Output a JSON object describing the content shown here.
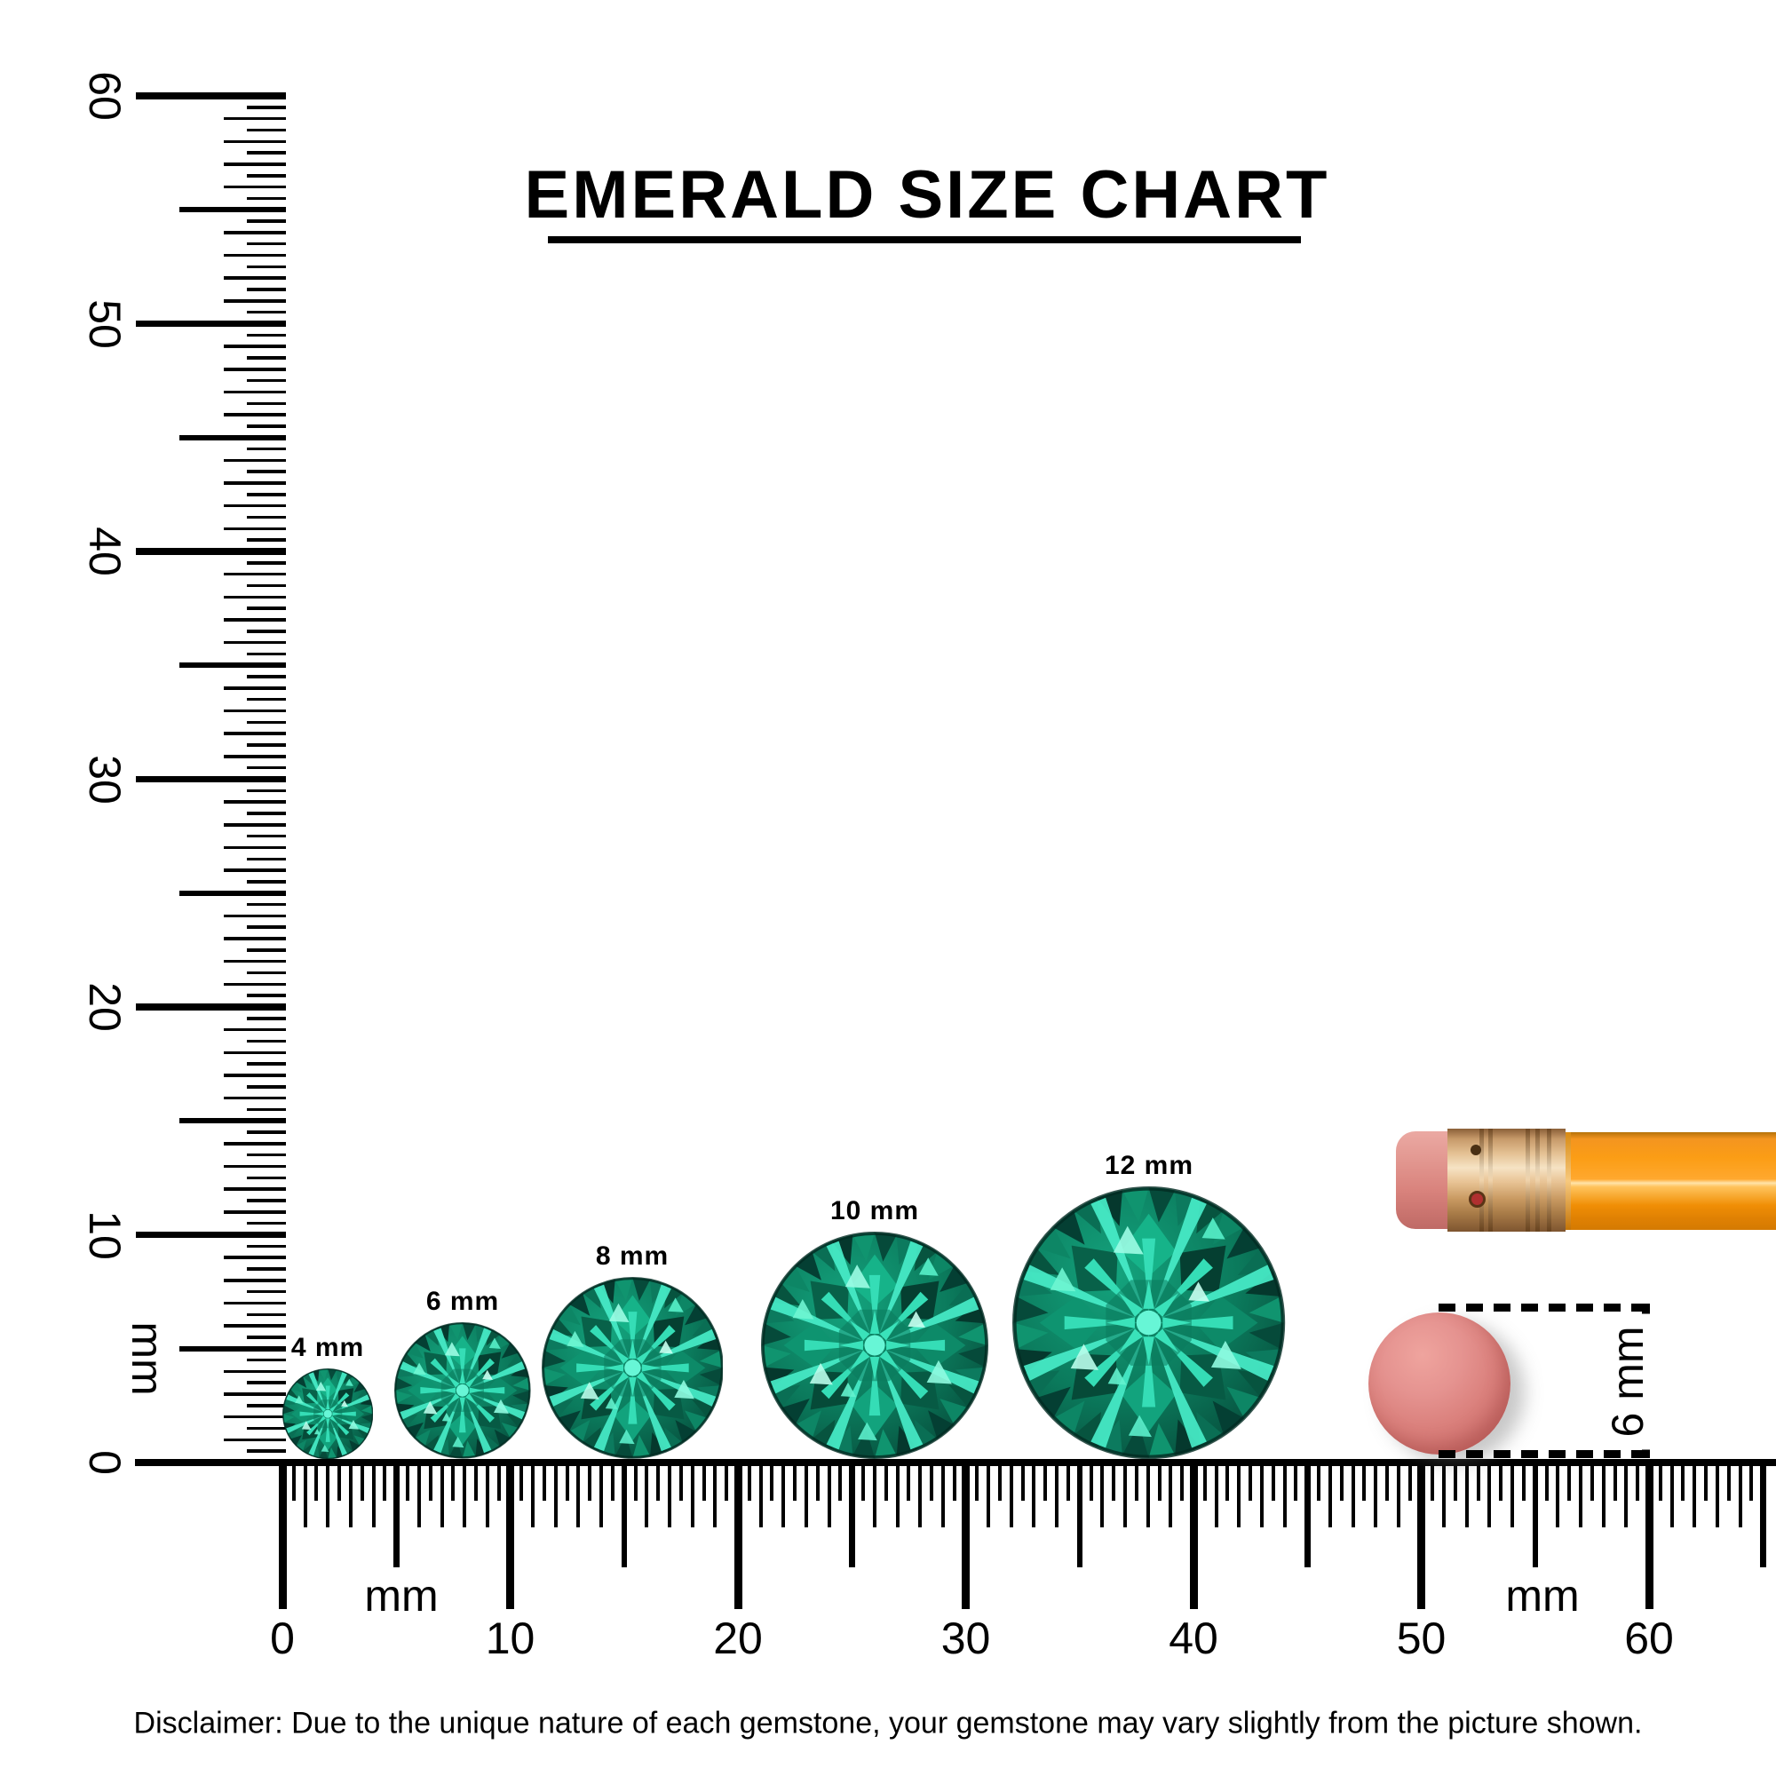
{
  "title": "EMERALD SIZE CHART",
  "rulers": {
    "vertical": {
      "unit": "mm",
      "labels": [
        "0",
        "10",
        "20",
        "30",
        "40",
        "50",
        "60"
      ]
    },
    "horizontal": {
      "unit_left": "mm",
      "unit_right": "mm",
      "labels": [
        "0",
        "10",
        "20",
        "30",
        "40",
        "50",
        "60"
      ]
    }
  },
  "gems": [
    {
      "label": "4 mm",
      "size_mm": 4
    },
    {
      "label": "6 mm",
      "size_mm": 6
    },
    {
      "label": "8 mm",
      "size_mm": 8
    },
    {
      "label": "10 mm",
      "size_mm": 10
    },
    {
      "label": "12 mm",
      "size_mm": 12
    }
  ],
  "eraser_measurement": {
    "label": "6 mm",
    "diameter_mm": 6
  },
  "disclaimer": "Disclaimer: Due to the unique nature of each gemstone, your gemstone may vary slightly from the picture shown.",
  "colors": {
    "ink": "#000000",
    "emerald_bright": "#40e8c0",
    "emerald_mid": "#0f8e68",
    "emerald_dark": "#07493a",
    "eraser_pink": "#d9837d",
    "eraser_dot_pink": "#da807c",
    "ferrule_gold": "#e4c193",
    "pencil_orange": "#fb9d15"
  }
}
